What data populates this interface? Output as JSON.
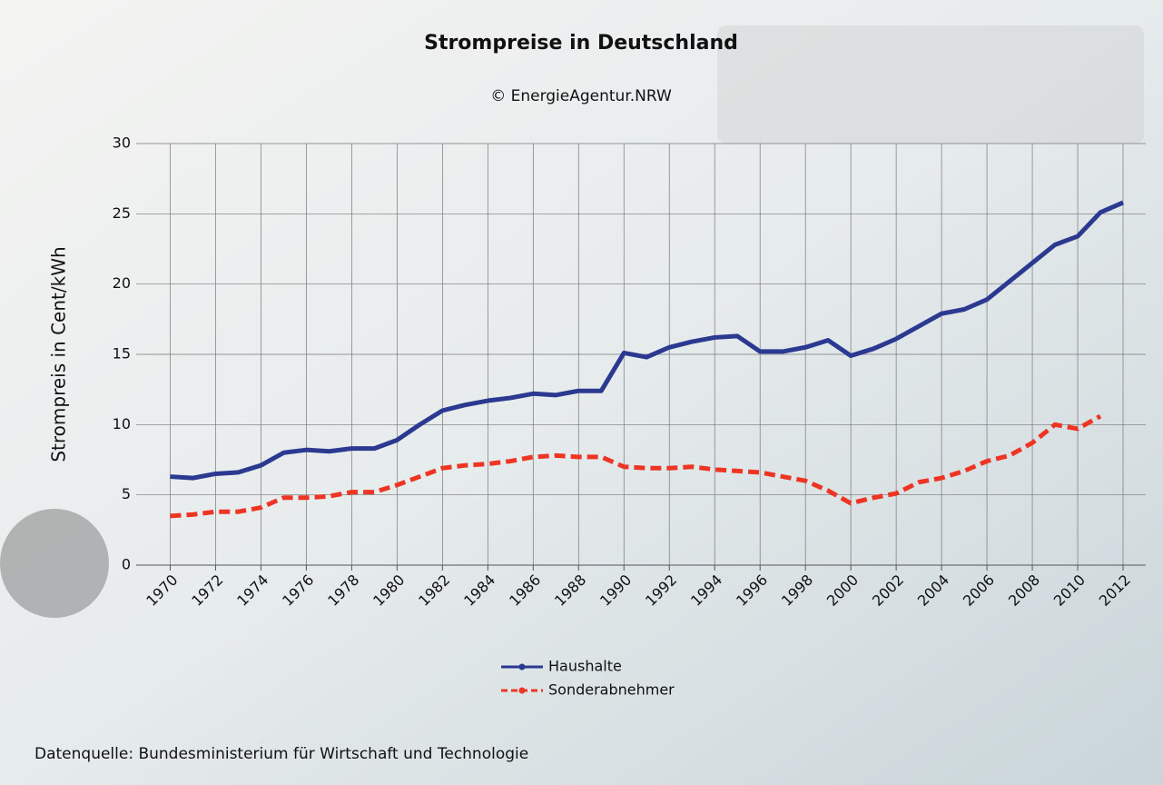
{
  "chart_data": {
    "type": "line",
    "title": "Strompreise in Deutschland",
    "subtitle": "© EnergieAgentur.NRW",
    "y_label": "Strompreis in Cent/kWh",
    "source": "Datenquelle: Bundesministerium für Wirtschaft und Technologie",
    "x": [
      1970,
      1971,
      1972,
      1973,
      1974,
      1975,
      1976,
      1977,
      1978,
      1979,
      1980,
      1981,
      1982,
      1983,
      1984,
      1985,
      1986,
      1987,
      1988,
      1989,
      1990,
      1991,
      1992,
      1993,
      1994,
      1995,
      1996,
      1997,
      1998,
      1999,
      2000,
      2001,
      2002,
      2003,
      2004,
      2005,
      2006,
      2007,
      2008,
      2009,
      2010,
      2011,
      2012
    ],
    "series": [
      {
        "name": "Haushalte",
        "color": "#2b3990",
        "dashed": false,
        "values": [
          6.3,
          6.2,
          6.5,
          6.6,
          7.1,
          8.0,
          8.2,
          8.1,
          8.3,
          8.3,
          8.9,
          10.0,
          11.0,
          11.4,
          11.7,
          11.9,
          12.2,
          12.1,
          12.4,
          12.4,
          15.1,
          14.8,
          15.5,
          15.9,
          16.2,
          16.3,
          15.2,
          15.2,
          15.5,
          16.0,
          14.9,
          15.4,
          16.1,
          17.0,
          17.9,
          18.2,
          18.9,
          20.2,
          21.5,
          22.8,
          23.4,
          25.1,
          25.8
        ]
      },
      {
        "name": "Sonderabnehmer",
        "color": "#ee3524",
        "dashed": true,
        "values": [
          3.5,
          3.6,
          3.8,
          3.8,
          4.1,
          4.8,
          4.8,
          4.9,
          5.2,
          5.2,
          5.7,
          6.3,
          6.9,
          7.1,
          7.2,
          7.4,
          7.7,
          7.8,
          7.7,
          7.7,
          7.0,
          6.9,
          6.9,
          7.0,
          6.8,
          6.7,
          6.6,
          6.3,
          6.0,
          5.3,
          4.4,
          4.8,
          5.1,
          5.9,
          6.2,
          6.7,
          7.4,
          7.8,
          8.7,
          10.0,
          9.7,
          10.6,
          null
        ]
      }
    ],
    "xlim": [
      1968.5,
      2013
    ],
    "xticks": [
      1970,
      1972,
      1974,
      1976,
      1978,
      1980,
      1982,
      1984,
      1986,
      1988,
      1990,
      1992,
      1994,
      1996,
      1998,
      2000,
      2002,
      2004,
      2006,
      2008,
      2010,
      2012
    ],
    "ylim": [
      0,
      30
    ],
    "yticks": [
      0,
      5,
      10,
      15,
      20,
      25,
      30
    ],
    "grid": true
  }
}
